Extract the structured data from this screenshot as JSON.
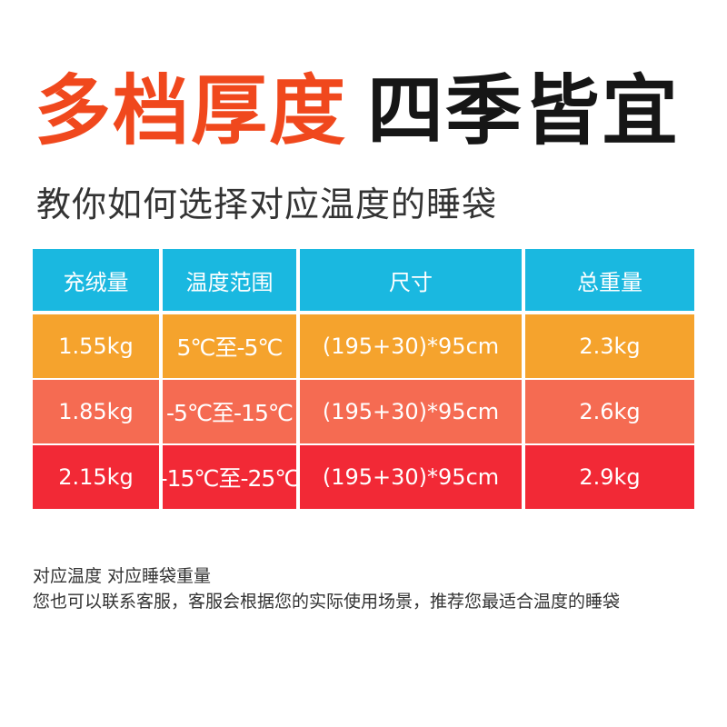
{
  "headline": {
    "part1": "多档厚度",
    "part2": "四季皆宜"
  },
  "subtitle": "教你如何选择对应温度的睡袋",
  "table": {
    "header_color": "#1ab8e0",
    "columns": [
      "充绒量",
      "温度范围",
      "尺寸",
      "总重量"
    ],
    "rows": [
      {
        "color": "#f5a32d",
        "cells": [
          "1.55kg",
          "5℃至-5℃",
          "(195+30)*95cm",
          "2.3kg"
        ]
      },
      {
        "color": "#f56b52",
        "cells": [
          "1.85kg",
          "-5℃至-15℃",
          "(195+30)*95cm",
          "2.6kg"
        ]
      },
      {
        "color": "#f22936",
        "cells": [
          "2.15kg",
          "-15℃至-25℃",
          "(195+30)*95cm",
          "2.9kg"
        ]
      }
    ]
  },
  "notes": {
    "line1": "对应温度 对应睡袋重量",
    "line2": "您也可以联系客服，客服会根据您的实际使用场景，推荐您最适合温度的睡袋"
  }
}
